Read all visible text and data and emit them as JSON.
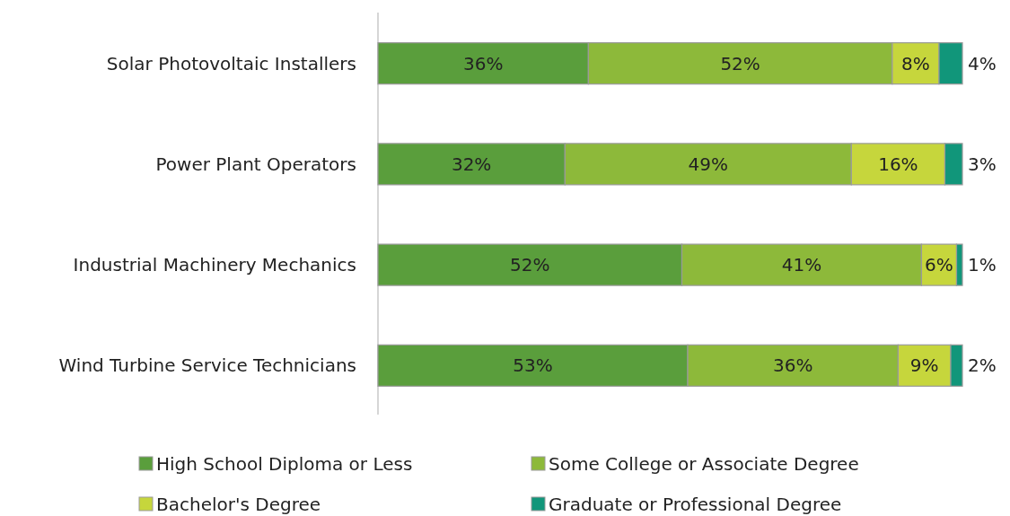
{
  "chart_data": {
    "type": "bar",
    "orientation": "horizontal",
    "stacked": true,
    "legend": "bottom",
    "categories": [
      "Solar Photovoltaic Installers",
      "Power Plant Operators",
      "Industrial Machinery Mechanics",
      "Wind Turbine Service Technicians"
    ],
    "series": [
      {
        "name": "High School Diploma or Less",
        "color": "#5a9e3c",
        "values": [
          36,
          32,
          52,
          53
        ],
        "value_labels": [
          "36%",
          "32%",
          "52%",
          "53%"
        ]
      },
      {
        "name": "Some College or Associate Degree",
        "color": "#8db93a",
        "values": [
          52,
          49,
          41,
          36
        ],
        "value_labels": [
          "52%",
          "49%",
          "41%",
          "36%"
        ]
      },
      {
        "name": "Bachelor's Degree",
        "color": "#c6d63c",
        "values": [
          8,
          16,
          6,
          9
        ],
        "value_labels": [
          "8%",
          "16%",
          "6%",
          "9%"
        ]
      },
      {
        "name": "Graduate or Professional Degree",
        "color": "#11967a",
        "values": [
          4,
          3,
          1,
          2
        ],
        "value_labels": [
          "4%",
          "3%",
          "1%",
          "2%"
        ]
      }
    ]
  }
}
